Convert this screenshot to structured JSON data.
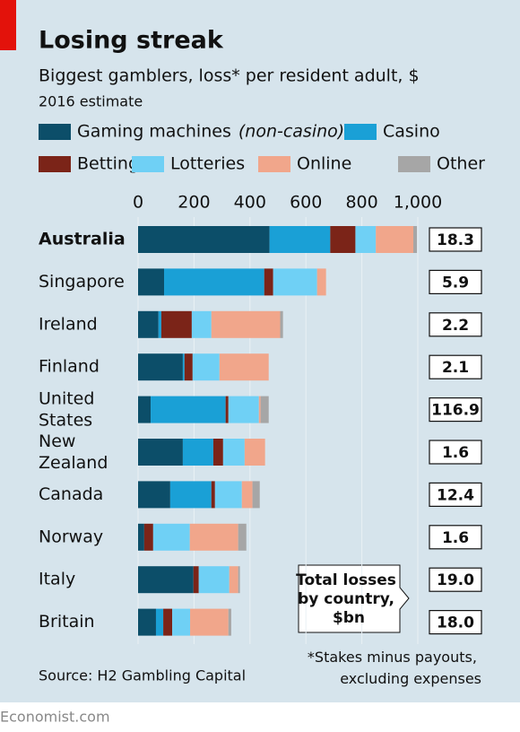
{
  "chart_data": {
    "type": "stacked-bar-horizontal",
    "title": "Losing streak",
    "subtitle": "Biggest gamblers, loss* per resident adult, $",
    "subtitle2": "2016 estimate",
    "legend_note": "(non-casino)",
    "categories": [
      "Australia",
      "Singapore",
      "Ireland",
      "Finland",
      "United States",
      "New Zealand",
      "Canada",
      "Norway",
      "Italy",
      "Britain"
    ],
    "series": [
      {
        "name": "Gaming machines",
        "color": "#0c4e69",
        "values": [
          470,
          93,
          73,
          160,
          45,
          160,
          115,
          22,
          198,
          64
        ]
      },
      {
        "name": "Casino",
        "color": "#1aa0d6",
        "values": [
          217,
          358,
          10,
          6,
          268,
          109,
          147,
          0,
          0,
          26
        ]
      },
      {
        "name": "Betting",
        "color": "#7b2418",
        "values": [
          90,
          32,
          109,
          29,
          10,
          35,
          13,
          32,
          19,
          32
        ]
      },
      {
        "name": "Lotteries",
        "color": "#6fd0f5",
        "values": [
          73,
          157,
          70,
          96,
          109,
          77,
          96,
          131,
          109,
          64
        ]
      },
      {
        "name": "Online",
        "color": "#f1a68b",
        "values": [
          134,
          32,
          246,
          176,
          6,
          73,
          38,
          173,
          32,
          137
        ]
      },
      {
        "name": "Other",
        "color": "#a6a6a6",
        "values": [
          13,
          0,
          10,
          0,
          29,
          0,
          26,
          29,
          6,
          10
        ]
      }
    ],
    "xlim": [
      0,
      1000
    ],
    "xticks": [
      0,
      200,
      400,
      600,
      800,
      {
        "value": 1000,
        "label": "1,000"
      }
    ],
    "totals": {
      "label": "Total losses by country, $bn",
      "values": [
        18.3,
        5.9,
        2.2,
        2.1,
        116.9,
        1.6,
        12.4,
        1.6,
        19.0,
        18.0
      ],
      "value_labels": [
        "18.3",
        "5.9",
        "2.2",
        "2.1",
        "116.9",
        "1.6",
        "12.4",
        "1.6",
        "19.0",
        "18.0"
      ]
    },
    "footnote": "*Stakes minus payouts, excluding expenses",
    "source": "Source: H2 Gambling Capital",
    "credit": "Economist.com"
  }
}
